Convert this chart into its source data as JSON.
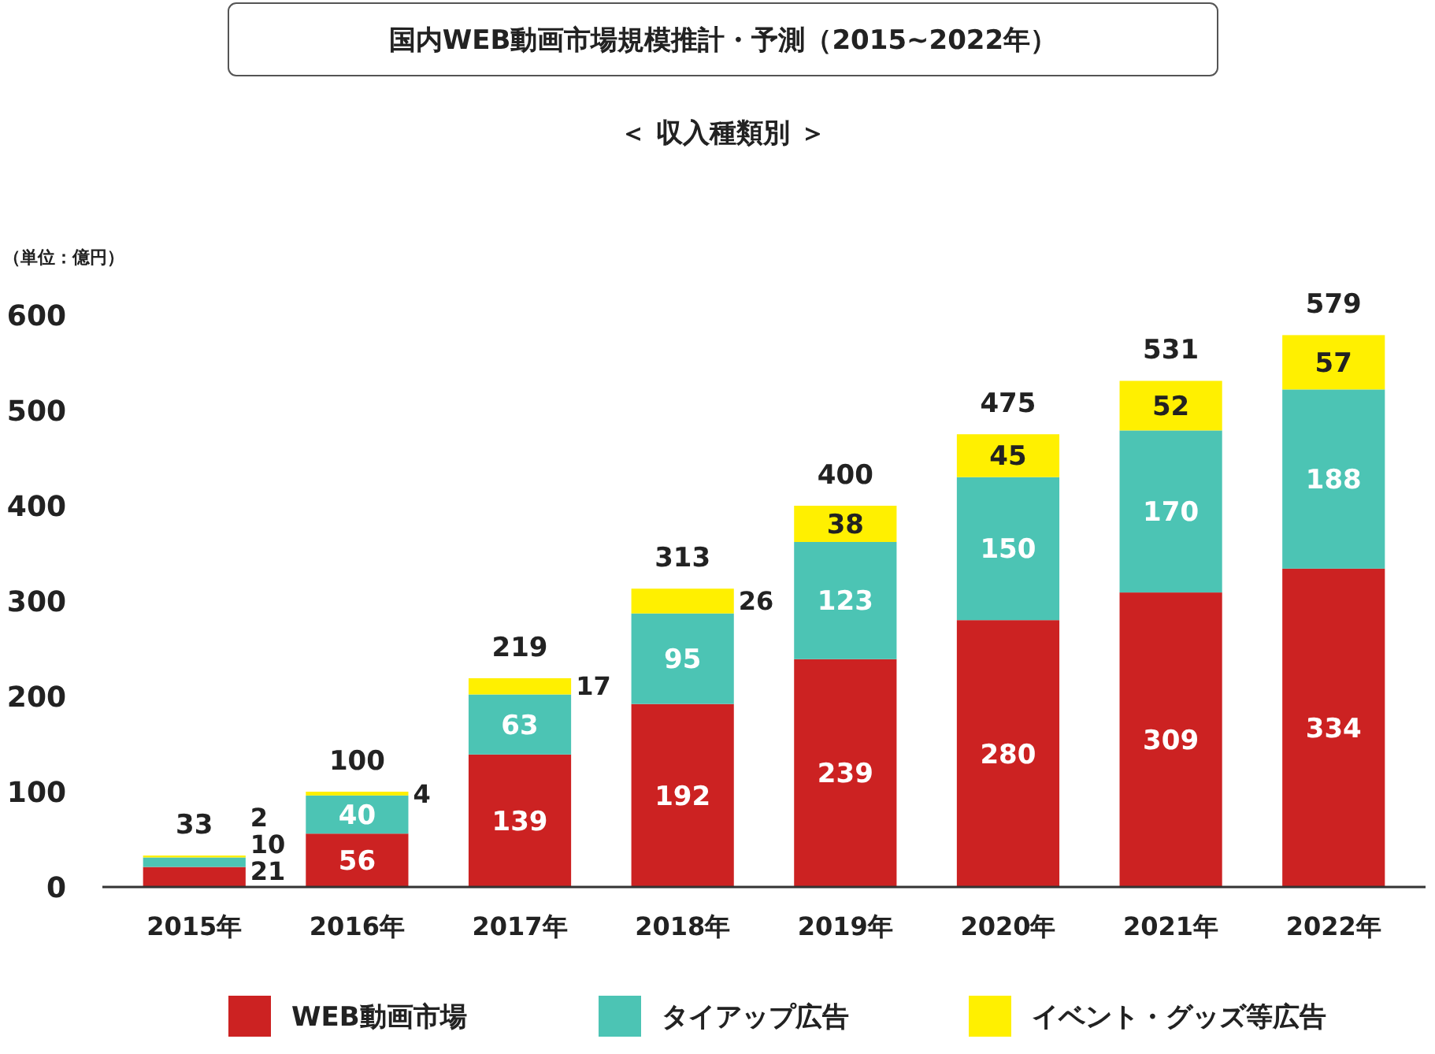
{
  "chart_data": {
    "type": "bar",
    "title": "国内WEB動画市場規模推計・予測（2015~2022年）",
    "subtitle": "＜ 収入種類別 ＞",
    "ylabel": "（単位：億円）",
    "categories": [
      "2015年",
      "2016年",
      "2017年",
      "2018年",
      "2019年",
      "2020年",
      "2021年",
      "2022年"
    ],
    "stacked": true,
    "data_labels": true,
    "legend": "bottom",
    "grid": false,
    "ylim": [
      0,
      600
    ],
    "yticks": [
      0,
      100,
      200,
      300,
      400,
      500,
      600
    ],
    "series": [
      {
        "name": "WEB動画市場",
        "color": "#cc2222",
        "values": [
          21,
          56,
          139,
          192,
          239,
          280,
          309,
          334
        ]
      },
      {
        "name": "タイアップ広告",
        "color": "#4cc4b4",
        "values": [
          10,
          40,
          63,
          95,
          123,
          150,
          170,
          188
        ]
      },
      {
        "name": "イベント・グッズ等広告",
        "color": "#fff000",
        "values": [
          2,
          4,
          17,
          26,
          38,
          45,
          52,
          57
        ]
      }
    ],
    "totals": [
      "33",
      "100",
      "219",
      "313",
      "400",
      "475",
      "531",
      "579"
    ]
  }
}
